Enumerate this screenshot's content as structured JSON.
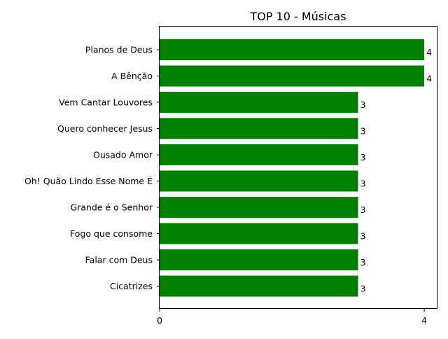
{
  "chart_data": {
    "type": "bar",
    "orientation": "horizontal",
    "title": "TOP 10 - Músicas",
    "xlabel": "",
    "ylabel": "",
    "categories": [
      "Planos de Deus",
      "A Bênção",
      "Vem Cantar Louvores",
      "Quero conhecer Jesus",
      "Ousado Amor",
      "Oh! Quão Lindo Esse Nome É",
      "Grande é o Senhor",
      "Fogo que consome",
      "Falar com Deus",
      "Cicatrizes"
    ],
    "values": [
      4,
      4,
      3,
      3,
      3,
      3,
      3,
      3,
      3,
      3
    ],
    "data_labels": [
      "4",
      "4",
      "3",
      "3",
      "3",
      "3",
      "3",
      "3",
      "3",
      "3"
    ],
    "xlim": [
      0,
      4.2
    ],
    "xticks": [
      0,
      4
    ],
    "xtick_labels": [
      "0",
      "4"
    ],
    "bar_color": "#008000",
    "grid": false,
    "legend": "none"
  }
}
